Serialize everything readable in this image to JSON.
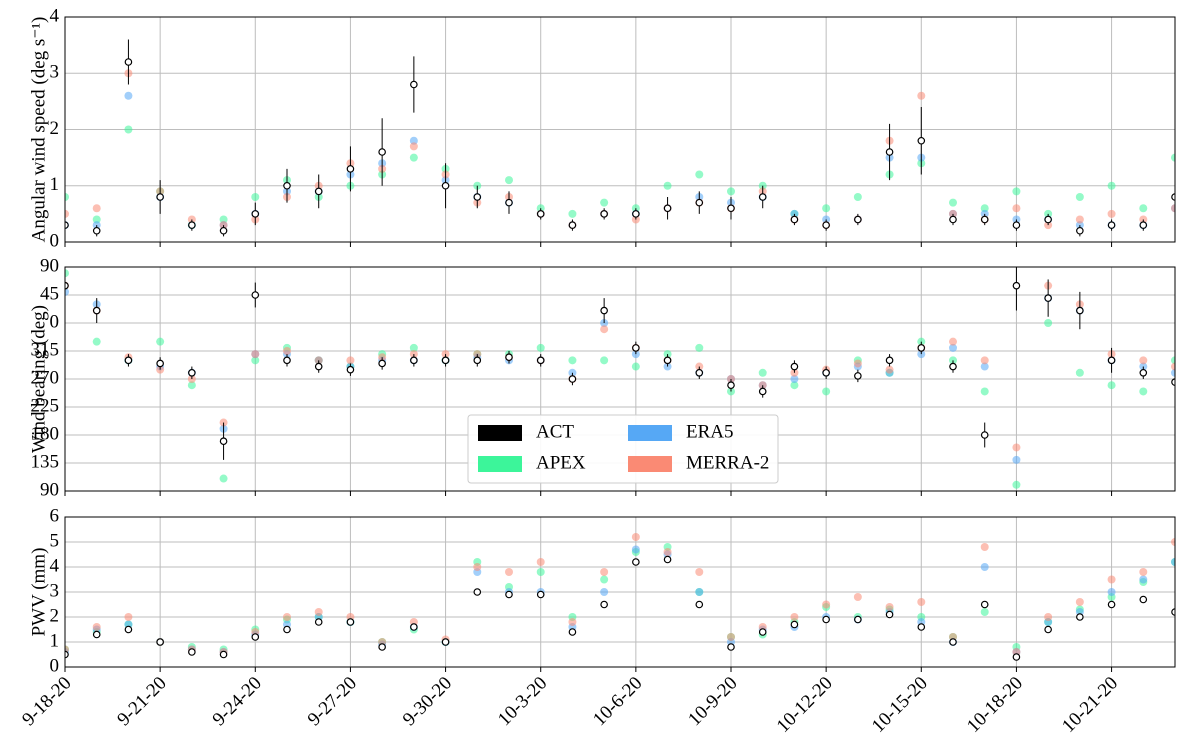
{
  "chart_data": [
    {
      "type": "scatter",
      "ylabel": "Angular wind speed (deg s⁻¹)",
      "x": [
        "9-18-20",
        "9-19-20",
        "9-20-20",
        "9-21-20",
        "9-22-20",
        "9-23-20",
        "9-24-20",
        "9-25-20",
        "9-26-20",
        "9-27-20",
        "9-28-20",
        "9-29-20",
        "9-30-20",
        "10-1-20",
        "10-2-20",
        "10-3-20",
        "10-4-20",
        "10-5-20",
        "10-6-20",
        "10-7-20",
        "10-8-20",
        "10-9-20",
        "10-10-20",
        "10-11-20",
        "10-12-20",
        "10-13-20",
        "10-14-20",
        "10-15-20",
        "10-16-20",
        "10-17-20",
        "10-18-20",
        "10-19-20",
        "10-20-20",
        "10-21-20",
        "10-22-20",
        "10-23-20"
      ],
      "xlim": [
        "9-18-20",
        "10-23-20"
      ],
      "ylim": [
        0,
        4
      ],
      "yticks": [
        0,
        1,
        2,
        3,
        4
      ],
      "grid": true,
      "series": [
        {
          "color": "#3cf59a",
          "values": [
            0.8,
            0.4,
            2.0,
            0.9,
            0.3,
            0.4,
            0.8,
            1.1,
            0.8,
            1.0,
            1.2,
            1.5,
            1.3,
            1.0,
            1.1,
            0.6,
            0.5,
            0.7,
            0.6,
            1.0,
            1.2,
            0.9,
            1.0,
            0.5,
            0.6,
            0.8,
            1.2,
            1.4,
            0.7,
            0.6,
            0.9,
            0.5,
            0.8,
            1.0,
            0.6,
            1.5
          ]
        },
        {
          "color": "#56a8f5",
          "values": [
            0.3,
            0.3,
            2.6,
            0.8,
            0.3,
            0.3,
            0.5,
            0.9,
            0.9,
            1.2,
            1.4,
            1.8,
            1.1,
            0.8,
            0.7,
            0.5,
            0.3,
            0.5,
            0.5,
            0.6,
            0.8,
            0.7,
            0.8,
            0.5,
            0.4,
            0.4,
            1.5,
            1.5,
            0.5,
            0.5,
            0.4,
            0.4,
            0.3,
            0.3,
            0.3,
            0.6
          ]
        },
        {
          "color": "#fa8a74",
          "values": [
            0.5,
            0.6,
            3.0,
            0.9,
            0.4,
            0.3,
            0.4,
            0.8,
            1.0,
            1.4,
            1.3,
            1.7,
            1.2,
            0.7,
            0.8,
            0.5,
            0.3,
            0.5,
            0.4,
            0.6,
            0.7,
            0.6,
            0.9,
            0.4,
            0.3,
            0.4,
            1.8,
            2.6,
            0.5,
            0.4,
            0.6,
            0.3,
            0.4,
            0.5,
            0.4,
            0.6
          ]
        },
        {
          "color": "#000000",
          "values": [
            0.3,
            0.2,
            3.2,
            0.8,
            0.3,
            0.2,
            0.5,
            1.0,
            0.9,
            1.3,
            1.6,
            2.8,
            1.0,
            0.8,
            0.7,
            0.5,
            0.3,
            0.5,
            0.5,
            0.6,
            0.7,
            0.6,
            0.8,
            0.4,
            0.3,
            0.4,
            1.6,
            1.8,
            0.4,
            0.4,
            0.3,
            0.4,
            0.2,
            0.3,
            0.3,
            0.8
          ],
          "errors": [
            0.2,
            0.1,
            0.4,
            0.3,
            0.1,
            0.1,
            0.2,
            0.3,
            0.3,
            0.4,
            0.6,
            0.5,
            0.4,
            0.2,
            0.2,
            0.1,
            0.1,
            0.1,
            0.1,
            0.2,
            0.2,
            0.2,
            0.2,
            0.1,
            0.1,
            0.1,
            0.5,
            0.6,
            0.1,
            0.1,
            0.1,
            0.1,
            0.1,
            0.1,
            0.1,
            0.2
          ]
        }
      ]
    },
    {
      "type": "scatter",
      "ylabel": "Wind bearing (deg)",
      "x": [
        "9-18-20",
        "9-19-20",
        "9-20-20",
        "9-21-20",
        "9-22-20",
        "9-23-20",
        "9-24-20",
        "9-25-20",
        "9-26-20",
        "9-27-20",
        "9-28-20",
        "9-29-20",
        "9-30-20",
        "10-1-20",
        "10-2-20",
        "10-3-20",
        "10-4-20",
        "10-5-20",
        "10-6-20",
        "10-7-20",
        "10-8-20",
        "10-9-20",
        "10-10-20",
        "10-11-20",
        "10-12-20",
        "10-13-20",
        "10-14-20",
        "10-15-20",
        "10-16-20",
        "10-17-20",
        "10-18-20",
        "10-19-20",
        "10-20-20",
        "10-21-20",
        "10-22-20",
        "10-23-20"
      ],
      "xlim": [
        "9-18-20",
        "10-23-20"
      ],
      "ylim": [
        90,
        450
      ],
      "yticks": [
        90,
        135,
        180,
        225,
        270,
        315,
        {
          "value": 360,
          "label": "0"
        },
        {
          "value": 405,
          "label": "45"
        },
        {
          "value": 450,
          "label": "90"
        }
      ],
      "grid": true,
      "legend": "lower center",
      "series": [
        {
          "name": "APEX",
          "color": "#3cf59a",
          "values": [
            440,
            330,
            300,
            330,
            260,
            110,
            300,
            320,
            300,
            290,
            310,
            320,
            300,
            310,
            310,
            320,
            300,
            300,
            290,
            310,
            320,
            250,
            280,
            260,
            250,
            300,
            280,
            330,
            300,
            250,
            100,
            360,
            280,
            260,
            250,
            300
          ]
        },
        {
          "name": "ERA5",
          "color": "#56a8f5",
          "values": [
            410,
            390,
            300,
            290,
            280,
            190,
            310,
            310,
            300,
            290,
            300,
            300,
            300,
            305,
            300,
            300,
            280,
            360,
            310,
            290,
            280,
            270,
            260,
            270,
            280,
            290,
            280,
            310,
            320,
            290,
            140,
            400,
            380,
            300,
            290,
            280
          ]
        },
        {
          "name": "MERRA-2",
          "color": "#fa8a74",
          "values": [
            420,
            380,
            305,
            285,
            270,
            200,
            310,
            315,
            300,
            300,
            305,
            310,
            310,
            310,
            305,
            300,
            270,
            350,
            320,
            300,
            290,
            270,
            260,
            280,
            285,
            295,
            285,
            320,
            330,
            300,
            160,
            420,
            390,
            310,
            300,
            290
          ]
        },
        {
          "name": "ACT",
          "color": "#000000",
          "values": [
            420,
            380,
            300,
            295,
            280,
            170,
            405,
            300,
            290,
            285,
            295,
            300,
            300,
            300,
            305,
            300,
            270,
            380,
            320,
            300,
            280,
            260,
            250,
            290,
            280,
            275,
            300,
            320,
            290,
            180,
            420,
            400,
            380,
            300,
            280,
            265
          ],
          "errors": [
            10,
            20,
            10,
            10,
            10,
            30,
            20,
            10,
            10,
            10,
            10,
            10,
            10,
            10,
            10,
            10,
            10,
            20,
            10,
            10,
            10,
            10,
            10,
            10,
            10,
            10,
            10,
            10,
            10,
            20,
            40,
            30,
            30,
            20,
            10,
            10
          ]
        }
      ]
    },
    {
      "type": "scatter",
      "ylabel": "PWV (mm)",
      "x": [
        "9-18-20",
        "9-19-20",
        "9-20-20",
        "9-21-20",
        "9-22-20",
        "9-23-20",
        "9-24-20",
        "9-25-20",
        "9-26-20",
        "9-27-20",
        "9-28-20",
        "9-29-20",
        "9-30-20",
        "10-1-20",
        "10-2-20",
        "10-3-20",
        "10-4-20",
        "10-5-20",
        "10-6-20",
        "10-7-20",
        "10-8-20",
        "10-9-20",
        "10-10-20",
        "10-11-20",
        "10-12-20",
        "10-13-20",
        "10-14-20",
        "10-15-20",
        "10-16-20",
        "10-17-20",
        "10-18-20",
        "10-19-20",
        "10-20-20",
        "10-21-20",
        "10-22-20",
        "10-23-20"
      ],
      "xlim": [
        "9-18-20",
        "10-23-20"
      ],
      "ylim": [
        0,
        6
      ],
      "yticks": [
        0,
        1,
        2,
        3,
        4,
        5,
        6
      ],
      "grid": true,
      "xticks": [
        "9-18-20",
        "9-21-20",
        "9-24-20",
        "9-27-20",
        "9-30-20",
        "10-3-20",
        "10-6-20",
        "10-9-20",
        "10-12-20",
        "10-15-20",
        "10-18-20",
        "10-21-20"
      ],
      "series": [
        {
          "color": "#3cf59a",
          "values": [
            0.7,
            1.4,
            1.7,
            1.0,
            0.8,
            0.7,
            1.5,
            1.9,
            2.0,
            1.8,
            1.0,
            1.5,
            1.0,
            4.2,
            3.2,
            3.8,
            2.0,
            3.5,
            4.6,
            4.8,
            3.0,
            1.2,
            1.3,
            1.8,
            2.4,
            2.0,
            2.3,
            2.0,
            1.2,
            2.2,
            0.8,
            1.8,
            2.3,
            2.8,
            3.4,
            4.2
          ]
        },
        {
          "color": "#56a8f5",
          "values": [
            0.6,
            1.5,
            1.7,
            1.0,
            0.7,
            0.6,
            1.3,
            1.7,
            2.0,
            1.8,
            0.9,
            1.6,
            1.0,
            3.8,
            3.0,
            3.0,
            1.6,
            3.0,
            4.7,
            4.5,
            3.0,
            1.0,
            1.5,
            1.6,
            2.0,
            1.9,
            2.2,
            1.8,
            1.0,
            4.0,
            0.6,
            1.8,
            2.2,
            3.0,
            3.5,
            4.2
          ]
        },
        {
          "color": "#fa8a74",
          "values": [
            0.7,
            1.6,
            2.0,
            1.0,
            0.7,
            0.6,
            1.4,
            2.0,
            2.2,
            2.0,
            1.0,
            1.8,
            1.1,
            4.0,
            3.8,
            4.2,
            1.8,
            3.8,
            5.2,
            4.6,
            3.8,
            1.2,
            1.6,
            2.0,
            2.5,
            2.8,
            2.4,
            2.6,
            1.2,
            4.8,
            0.6,
            2.0,
            2.6,
            3.5,
            3.8,
            5.0
          ]
        },
        {
          "color": "#000000",
          "values": [
            0.5,
            1.3,
            1.5,
            1.0,
            0.6,
            0.5,
            1.2,
            1.5,
            1.8,
            1.8,
            0.8,
            1.6,
            1.0,
            3.0,
            2.9,
            2.9,
            1.4,
            2.5,
            4.2,
            4.3,
            2.5,
            0.8,
            1.4,
            1.7,
            1.9,
            1.9,
            2.1,
            1.6,
            1.0,
            2.5,
            0.4,
            1.5,
            2.0,
            2.5,
            2.7,
            2.2
          ]
        }
      ]
    }
  ]
}
